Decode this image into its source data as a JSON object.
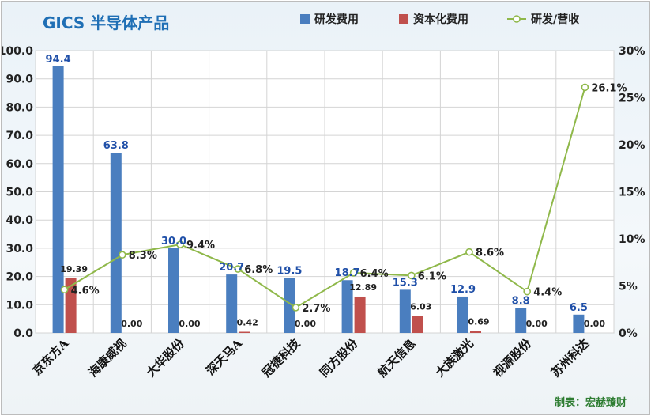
{
  "chart_data": {
    "type": "bar",
    "title": "GICS 半导体产品",
    "credit": "制表：宏赫臻财",
    "categories": [
      "京东方A",
      "海康威视",
      "大华股份",
      "深天马A",
      "冠捷科技",
      "同方股份",
      "航天信息",
      "大族激光",
      "视源股份",
      "苏州科达"
    ],
    "series": [
      {
        "name": "研发费用",
        "type": "bar",
        "axis": "left",
        "color": "#4a7ebf",
        "values": [
          94.4,
          63.8,
          30.0,
          20.7,
          19.5,
          18.7,
          15.3,
          12.9,
          8.8,
          6.5
        ],
        "labels": [
          "94.4",
          "63.8",
          "30.0",
          "20.7",
          "19.5",
          "18.7",
          "15.3",
          "12.9",
          "8.8",
          "6.5"
        ]
      },
      {
        "name": "资本化费用",
        "type": "bar",
        "axis": "right-bar",
        "color": "#c0504d",
        "values": [
          19.39,
          0.0,
          0.0,
          0.42,
          0.0,
          12.89,
          6.03,
          0.69,
          0.0,
          0.0
        ],
        "labels": [
          "19.39",
          "0.00",
          "0.00",
          "0.42",
          "0.00",
          "12.89",
          "6.03",
          "0.69",
          "0.00",
          "0.00"
        ]
      },
      {
        "name": "研发/营收",
        "type": "line",
        "axis": "right",
        "color": "#8fb84a",
        "values": [
          4.6,
          8.3,
          9.4,
          6.8,
          2.7,
          6.4,
          6.1,
          8.6,
          4.4,
          26.1
        ],
        "labels": [
          "4.6%",
          "8.3%",
          "9.4%",
          "6.8%",
          "2.7%",
          "6.4%",
          "6.1%",
          "8.6%",
          "4.4%",
          "26.1%"
        ]
      }
    ],
    "ylim_left": [
      0,
      100
    ],
    "ylim_right": [
      0,
      30
    ],
    "left_ticks": [
      "0.0",
      "10.0",
      "20.0",
      "30.0",
      "40.0",
      "50.0",
      "60.0",
      "70.0",
      "80.0",
      "90.0",
      "100.0"
    ],
    "right_ticks": [
      "0%",
      "5%",
      "10%",
      "15%",
      "20%",
      "25%",
      "30%"
    ],
    "legend": [
      "研发费用",
      "资本化费用",
      "研发/营收"
    ],
    "legend_position": "top-right",
    "grid": true
  }
}
